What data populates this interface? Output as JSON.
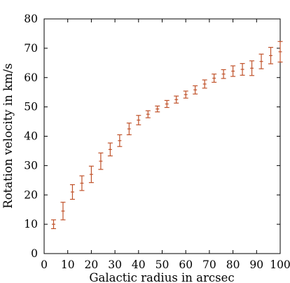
{
  "chart_data": {
    "type": "scatter",
    "title": "",
    "xlabel": "Galactic radius in arcsec",
    "ylabel": "Rotation velocity in km/s",
    "xlim": [
      0,
      100
    ],
    "ylim": [
      0,
      80
    ],
    "x_ticks": [
      "0",
      "10",
      "20",
      "30",
      "40",
      "50",
      "60",
      "70",
      "80",
      "90",
      "100"
    ],
    "y_ticks": [
      "0",
      "10",
      "20",
      "30",
      "40",
      "50",
      "60",
      "70",
      "80"
    ],
    "grid": false,
    "legend": "none",
    "marker": "error bars only",
    "color": "#c0522a",
    "series": [
      {
        "x": [
          4,
          8,
          12,
          16,
          20,
          24,
          28,
          32,
          36,
          40,
          44,
          48,
          52,
          56,
          60,
          64,
          68,
          72,
          76,
          80,
          84,
          88,
          92,
          96,
          100
        ],
        "y": [
          10,
          14.5,
          21,
          24,
          27,
          31.5,
          35.5,
          38.5,
          42.5,
          45.5,
          47.5,
          49.3,
          51,
          52.5,
          54.2,
          55.8,
          57.8,
          59.8,
          61.2,
          62.2,
          62.8,
          63.2,
          65.5,
          67.5,
          68.8
        ],
        "err": [
          1.5,
          3,
          2.5,
          2.5,
          2.8,
          2.8,
          2.2,
          2.0,
          2.0,
          1.6,
          1.2,
          1.0,
          1.2,
          1.2,
          1.2,
          1.4,
          1.4,
          1.4,
          1.5,
          1.8,
          2.0,
          2.5,
          2.5,
          2.8,
          3.5
        ]
      }
    ]
  }
}
